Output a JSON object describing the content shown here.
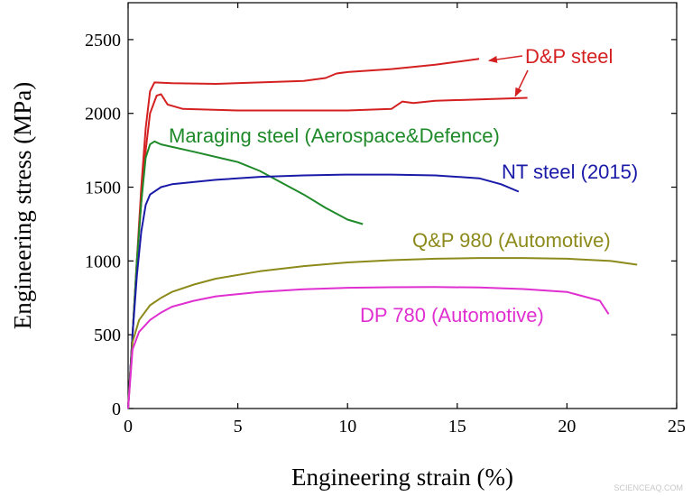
{
  "chart_data": {
    "type": "line",
    "xlabel": "Engineering strain (%)",
    "ylabel": "Engineering stress (MPa)",
    "xlim": [
      0,
      25
    ],
    "ylim": [
      0,
      2750
    ],
    "xticks": [
      0,
      5,
      10,
      15,
      20,
      25
    ],
    "yticks": [
      0,
      500,
      1000,
      1500,
      2000,
      2500
    ],
    "grid": false,
    "legend": "inline labels",
    "series": [
      {
        "name": "D&P steel",
        "color": "#d42020",
        "x": [
          0,
          0.2,
          0.4,
          0.6,
          0.8,
          1.0,
          1.2,
          2,
          4,
          6,
          8,
          9,
          9.5,
          10,
          12,
          14,
          15,
          16
        ],
        "y": [
          0,
          500,
          1000,
          1500,
          1900,
          2150,
          2210,
          2205,
          2200,
          2210,
          2220,
          2240,
          2270,
          2280,
          2300,
          2330,
          2350,
          2370
        ]
      },
      {
        "name": "",
        "color": "#d42020",
        "x": [
          0,
          0.2,
          0.4,
          0.6,
          0.8,
          1.0,
          1.3,
          1.5,
          1.8,
          2.5,
          5,
          8,
          10,
          12,
          12.5,
          13,
          14,
          16,
          18.2
        ],
        "y": [
          0,
          500,
          1000,
          1400,
          1750,
          2000,
          2120,
          2130,
          2060,
          2030,
          2020,
          2020,
          2020,
          2030,
          2080,
          2070,
          2085,
          2095,
          2105
        ]
      },
      {
        "name": "Maraging steel (Aerospace&Defence)",
        "color": "#1f8a2a",
        "x": [
          0,
          0.2,
          0.4,
          0.6,
          0.8,
          1.0,
          1.2,
          1.5,
          3,
          5,
          6,
          7,
          8,
          9,
          10,
          10.7
        ],
        "y": [
          0,
          500,
          1000,
          1400,
          1700,
          1790,
          1810,
          1790,
          1740,
          1670,
          1610,
          1530,
          1450,
          1360,
          1280,
          1250
        ]
      },
      {
        "name": "NT steel (2015)",
        "color": "#1a1aa8",
        "x": [
          0,
          0.2,
          0.4,
          0.6,
          0.8,
          1.0,
          1.5,
          2,
          4,
          6,
          8,
          10,
          12,
          14,
          16,
          17,
          17.8
        ],
        "y": [
          0,
          500,
          900,
          1200,
          1380,
          1450,
          1500,
          1520,
          1550,
          1570,
          1580,
          1585,
          1585,
          1580,
          1560,
          1520,
          1470
        ]
      },
      {
        "name": "Q&P 980 (Automotive)",
        "color": "#8c8a1a",
        "x": [
          0,
          0.2,
          0.5,
          1,
          1.5,
          2,
          3,
          4,
          6,
          8,
          10,
          12,
          14,
          16,
          18,
          20,
          22,
          23.2
        ],
        "y": [
          0,
          450,
          600,
          700,
          750,
          790,
          840,
          880,
          930,
          965,
          990,
          1005,
          1015,
          1020,
          1020,
          1015,
          1000,
          975
        ]
      },
      {
        "name": "DP 780 (Automotive)",
        "color": "#e02fd0",
        "x": [
          0,
          0.2,
          0.5,
          1,
          1.5,
          2,
          3,
          4,
          6,
          8,
          10,
          12,
          14,
          16,
          18,
          20,
          21.5,
          21.9
        ],
        "y": [
          0,
          400,
          520,
          600,
          650,
          690,
          730,
          760,
          790,
          808,
          818,
          822,
          823,
          820,
          810,
          790,
          730,
          640
        ]
      }
    ],
    "annotations": [
      {
        "text": "D&P steel",
        "color": "#d42020",
        "arrows_to": [
          [
            16.2,
            2370
          ],
          [
            17.4,
            2105
          ]
        ]
      },
      {
        "text": "Maraging steel (Aerospace&Defence)",
        "color": "#1f8a2a"
      },
      {
        "text": "NT steel (2015)",
        "color": "#1a1aa8"
      },
      {
        "text": "Q&P 980 (Automotive)",
        "color": "#8c8a1a"
      },
      {
        "text": "DP 780 (Automotive)",
        "color": "#e02fd0"
      }
    ]
  },
  "watermark": "SCIENCEAQ.COM"
}
